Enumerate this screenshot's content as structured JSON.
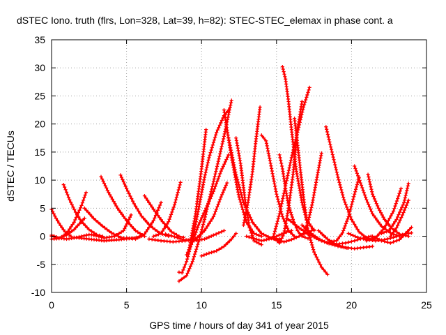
{
  "chart_data": {
    "type": "scatter",
    "title": "dSTEC Iono. truth (flrs, Lon=328, Lat=39, h=82): STEC-STEC_elemax in phase cont. a",
    "xlabel": "GPS time / hours of day 341 of year 2015",
    "ylabel": "dSTEC  / TECUs",
    "xlim": [
      0,
      25
    ],
    "ylim": [
      -10,
      35
    ],
    "xticks": [
      0,
      5,
      10,
      15,
      20,
      25
    ],
    "yticks": [
      -10,
      -5,
      0,
      5,
      10,
      15,
      20,
      25,
      30,
      35
    ],
    "grid": true,
    "legend": "none",
    "marker": "plus",
    "color": "#ff0000",
    "series": [
      {
        "x": [
          0.0,
          0.3,
          0.6,
          0.9,
          1.3
        ],
        "y": [
          4.8,
          3.2,
          1.9,
          0.8,
          0.0
        ]
      },
      {
        "x": [
          0.0,
          0.5,
          1.0,
          1.5,
          2.0,
          2.5,
          3.0
        ],
        "y": [
          0.2,
          -0.3,
          -0.5,
          -0.3,
          0.0,
          0.3,
          0.2
        ]
      },
      {
        "x": [
          0.0,
          0.5,
          1.0,
          1.5,
          2.0,
          2.3
        ],
        "y": [
          -0.5,
          -0.4,
          0.5,
          2.5,
          5.5,
          7.8
        ]
      },
      {
        "x": [
          0.0,
          0.5,
          1.0,
          1.5,
          2.2
        ],
        "y": [
          0.0,
          -0.3,
          0.2,
          1.2,
          3.2
        ]
      },
      {
        "x": [
          0.8,
          1.2,
          1.6,
          2.0,
          2.5,
          3.0,
          3.4
        ],
        "y": [
          9.2,
          6.5,
          4.3,
          2.6,
          1.2,
          0.3,
          0.0
        ]
      },
      {
        "x": [
          2.2,
          2.8,
          3.4,
          4.0,
          4.6,
          5.0
        ],
        "y": [
          5.0,
          3.2,
          1.8,
          0.6,
          -0.2,
          -0.4
        ]
      },
      {
        "x": [
          1.5,
          2.5,
          3.5,
          4.5,
          5.5,
          6.0
        ],
        "y": [
          -0.2,
          -0.5,
          -0.8,
          -0.6,
          -0.3,
          0.0
        ]
      },
      {
        "x": [
          3.3,
          3.8,
          4.4,
          5.0,
          5.6,
          6.2
        ],
        "y": [
          10.6,
          7.8,
          5.0,
          2.8,
          1.0,
          0.0
        ]
      },
      {
        "x": [
          2.8,
          3.5,
          4.2,
          4.8,
          5.3
        ],
        "y": [
          0.2,
          -0.3,
          0.0,
          1.0,
          3.8
        ]
      },
      {
        "x": [
          4.6,
          5.0,
          5.5,
          6.0,
          6.6,
          7.2,
          7.8
        ],
        "y": [
          10.9,
          8.5,
          5.8,
          3.6,
          1.8,
          0.6,
          0.0
        ]
      },
      {
        "x": [
          5.0,
          5.6,
          6.2,
          6.8,
          7.3
        ],
        "y": [
          -0.3,
          -0.5,
          0.4,
          2.8,
          6.0
        ]
      },
      {
        "x": [
          6.2,
          6.8,
          7.4,
          8.0,
          8.5,
          8.8
        ],
        "y": [
          7.2,
          4.8,
          2.6,
          0.8,
          0.0,
          -0.2
        ]
      },
      {
        "x": [
          6.5,
          7.3,
          8.1,
          8.9,
          9.5
        ],
        "y": [
          -0.5,
          -0.8,
          -1.0,
          -0.8,
          -0.4
        ]
      },
      {
        "x": [
          6.8,
          7.3,
          7.8,
          8.2,
          8.6
        ],
        "y": [
          0.0,
          0.5,
          2.6,
          5.6,
          9.6
        ]
      },
      {
        "x": [
          7.6,
          8.2,
          8.8,
          9.5,
          10.2,
          10.8,
          11.5
        ],
        "y": [
          0.4,
          -0.1,
          -0.6,
          -0.8,
          -0.5,
          0.2,
          1.0
        ]
      },
      {
        "x": [
          8.5,
          8.7,
          9.0,
          9.4,
          9.8,
          10.2,
          10.5,
          11.0,
          11.5,
          11.8
        ],
        "y": [
          -6.4,
          -6.5,
          -4.5,
          -0.5,
          4.8,
          10.5,
          14.0,
          18.5,
          21.5,
          22.5
        ]
      },
      {
        "x": [
          8.5,
          9.0,
          9.4,
          9.8,
          10.2,
          10.6,
          11.0,
          11.5,
          12.0
        ],
        "y": [
          -8.0,
          -7.0,
          -4.5,
          -1.0,
          3.0,
          7.5,
          12.0,
          17.8,
          24.2
        ]
      },
      {
        "x": [
          10.0,
          10.5,
          11.0,
          11.5,
          12.0,
          12.3
        ],
        "y": [
          -3.5,
          -3.0,
          -2.6,
          -1.8,
          -0.5,
          0.5
        ]
      },
      {
        "x": [
          9.0,
          9.4,
          9.8,
          10.3,
          10.8,
          11.3,
          11.8
        ],
        "y": [
          -3.3,
          -1.0,
          2.0,
          5.0,
          8.0,
          11.6,
          14.5
        ]
      },
      {
        "x": [
          9.2,
          9.6,
          10.0,
          10.3
        ],
        "y": [
          -2.0,
          4.0,
          12.0,
          19.0
        ]
      },
      {
        "x": [
          9.6,
          10.2,
          10.8,
          11.3,
          11.7
        ],
        "y": [
          -0.5,
          1.0,
          3.5,
          7.0,
          9.5
        ]
      },
      {
        "x": [
          11.5,
          12.0,
          12.5,
          13.0,
          13.5,
          14.0
        ],
        "y": [
          22.5,
          14.0,
          7.0,
          2.5,
          0.5,
          0.0
        ]
      },
      {
        "x": [
          11.8,
          12.3,
          12.8,
          13.4,
          14.0,
          14.6,
          15.2
        ],
        "y": [
          17.5,
          11.0,
          6.0,
          2.5,
          0.5,
          -0.3,
          -0.5
        ]
      },
      {
        "x": [
          12.3,
          12.6,
          12.9,
          13.2,
          13.5,
          14.0
        ],
        "y": [
          17.5,
          13.0,
          6.5,
          1.5,
          -0.8,
          -1.5
        ]
      },
      {
        "x": [
          12.8,
          13.1,
          13.4,
          13.6,
          13.9
        ],
        "y": [
          2.0,
          6.0,
          11.5,
          16.5,
          23.0
        ]
      },
      {
        "x": [
          13.0,
          13.5,
          14.0,
          14.5,
          15.0,
          15.5,
          16.0
        ],
        "y": [
          0.0,
          -0.4,
          -0.8,
          -0.5,
          0.0,
          0.6,
          1.0
        ]
      },
      {
        "x": [
          14.0,
          14.3,
          14.6,
          15.0,
          15.4,
          15.8,
          16.2
        ],
        "y": [
          18.0,
          17.0,
          13.0,
          7.5,
          3.5,
          1.0,
          0.0
        ]
      },
      {
        "x": [
          14.5,
          15.0,
          15.5,
          16.0,
          16.5,
          17.0,
          17.5
        ],
        "y": [
          -0.3,
          -0.6,
          -1.0,
          -0.6,
          0.0,
          0.6,
          1.2
        ]
      },
      {
        "x": [
          15.4,
          15.6,
          15.8,
          16.0,
          16.3,
          16.7,
          17.0,
          17.5
        ],
        "y": [
          30.2,
          28.0,
          24.0,
          19.0,
          12.0,
          6.0,
          3.0,
          1.0
        ]
      },
      {
        "x": [
          15.2,
          15.4,
          15.6,
          15.8,
          16.1,
          16.4,
          16.7,
          17.1
        ],
        "y": [
          14.5,
          12.0,
          8.5,
          5.5,
          3.0,
          1.0,
          0.0,
          -0.4
        ]
      },
      {
        "x": [
          14.8,
          15.2,
          15.6,
          16.0,
          16.4,
          16.8,
          17.2
        ],
        "y": [
          0.0,
          4.0,
          9.0,
          14.0,
          18.5,
          23.0,
          26.5
        ]
      },
      {
        "x": [
          16.2,
          16.5,
          16.8,
          17.1,
          17.5,
          18.0,
          18.4
        ],
        "y": [
          21.0,
          14.0,
          7.0,
          1.0,
          -2.8,
          -5.5,
          -6.8
        ]
      },
      {
        "x": [
          14.9,
          15.2,
          15.5,
          15.8,
          16.1,
          16.4,
          16.7
        ],
        "y": [
          -0.5,
          -1.2,
          0.5,
          5.0,
          11.0,
          19.0,
          24.0
        ]
      },
      {
        "x": [
          16.8,
          17.1,
          17.4,
          17.7,
          18.0
        ],
        "y": [
          0.5,
          2.5,
          6.0,
          10.5,
          14.8
        ]
      },
      {
        "x": [
          15.8,
          16.5,
          17.2,
          17.8,
          18.4,
          19.0,
          19.6,
          20.2,
          20.8,
          21.3
        ],
        "y": [
          3.0,
          1.5,
          0.3,
          -0.6,
          -1.2,
          -1.4,
          -1.2,
          -0.8,
          -0.3,
          0.0
        ]
      },
      {
        "x": [
          16.7,
          17.3,
          17.9,
          18.5,
          19.1,
          19.7
        ],
        "y": [
          2.0,
          0.5,
          -0.6,
          -1.3,
          -1.8,
          -2.1
        ]
      },
      {
        "x": [
          17.8,
          18.4,
          19.0,
          19.6,
          20.2,
          20.8,
          21.4
        ],
        "y": [
          1.0,
          -0.5,
          -1.5,
          -2.0,
          -2.2,
          -2.0,
          -1.8
        ]
      },
      {
        "x": [
          18.3,
          18.7,
          19.1,
          19.5,
          20.0,
          20.5,
          21.0,
          21.5
        ],
        "y": [
          19.5,
          15.0,
          10.5,
          6.5,
          3.0,
          0.8,
          -0.3,
          -0.6
        ]
      },
      {
        "x": [
          18.5,
          19.0,
          19.4,
          19.8,
          20.2,
          20.5
        ],
        "y": [
          -1.0,
          -0.8,
          0.6,
          3.5,
          7.5,
          10.5
        ]
      },
      {
        "x": [
          20.2,
          20.6,
          21.0,
          21.4,
          22.0,
          22.6,
          23.2
        ],
        "y": [
          12.5,
          9.5,
          6.5,
          4.0,
          1.8,
          0.6,
          0.0
        ]
      },
      {
        "x": [
          21.1,
          21.4,
          21.8,
          22.2,
          22.7,
          23.2,
          23.8
        ],
        "y": [
          11.0,
          7.5,
          5.0,
          3.0,
          1.4,
          0.4,
          0.0
        ]
      },
      {
        "x": [
          19.8,
          20.4,
          21.0,
          21.6,
          22.2,
          22.8,
          23.4,
          24.0
        ],
        "y": [
          0.5,
          -0.2,
          -0.6,
          -0.8,
          -0.6,
          -0.2,
          0.3,
          0.6
        ]
      },
      {
        "x": [
          21.0,
          21.6,
          22.2,
          22.8,
          23.3
        ],
        "y": [
          -0.8,
          -0.3,
          1.5,
          4.5,
          8.5
        ]
      },
      {
        "x": [
          21.4,
          22.0,
          22.6,
          23.2,
          23.6,
          24.0
        ],
        "y": [
          0.0,
          -0.8,
          -1.2,
          -0.6,
          0.5,
          1.6
        ]
      },
      {
        "x": [
          22.0,
          22.5,
          23.0,
          23.5,
          23.8
        ],
        "y": [
          0.5,
          1.0,
          3.0,
          6.0,
          9.4
        ]
      },
      {
        "x": [
          22.6,
          23.0,
          23.4,
          23.8
        ],
        "y": [
          0.0,
          1.5,
          3.8,
          6.4
        ]
      }
    ]
  }
}
